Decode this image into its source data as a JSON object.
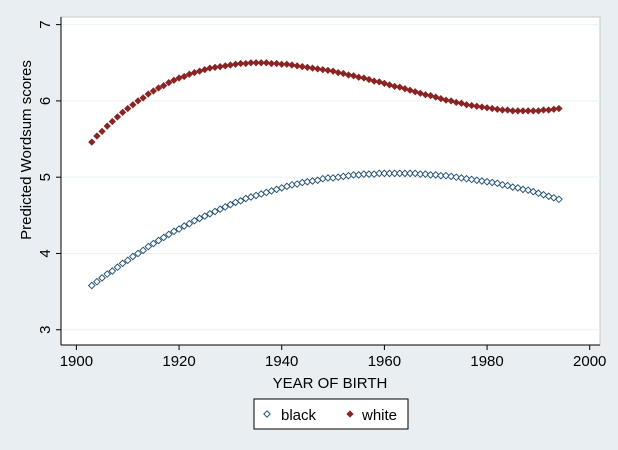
{
  "chart_data": {
    "type": "scatter",
    "title": "",
    "xlabel": "YEAR OF BIRTH",
    "ylabel": "Predicted Wordsum scores",
    "xlim": [
      1897,
      2002
    ],
    "ylim": [
      2.8,
      7.1
    ],
    "xticks": [
      1900,
      1920,
      1940,
      1960,
      1980,
      2000
    ],
    "xtick_labels": [
      "1900",
      "1920",
      "1940",
      "1960",
      "1980",
      "2000"
    ],
    "yticks": [
      3,
      4,
      5,
      6,
      7
    ],
    "ytick_labels": [
      "3",
      "4",
      "5",
      "6",
      "7"
    ],
    "grid": "horizontal",
    "legend_position": "bottom",
    "series": [
      {
        "name": "black",
        "color": "#1a4a6e",
        "marker": "hollow-diamond",
        "x": [
          1903,
          1904,
          1905,
          1906,
          1907,
          1908,
          1909,
          1910,
          1911,
          1912,
          1913,
          1914,
          1915,
          1916,
          1917,
          1918,
          1919,
          1920,
          1921,
          1922,
          1923,
          1924,
          1925,
          1926,
          1927,
          1928,
          1929,
          1930,
          1931,
          1932,
          1933,
          1934,
          1935,
          1936,
          1937,
          1938,
          1939,
          1940,
          1941,
          1942,
          1943,
          1944,
          1945,
          1946,
          1947,
          1948,
          1949,
          1950,
          1951,
          1952,
          1953,
          1954,
          1955,
          1956,
          1957,
          1958,
          1959,
          1960,
          1961,
          1962,
          1963,
          1964,
          1965,
          1966,
          1967,
          1968,
          1969,
          1970,
          1971,
          1972,
          1973,
          1974,
          1975,
          1976,
          1977,
          1978,
          1979,
          1980,
          1981,
          1982,
          1983,
          1984,
          1985,
          1986,
          1987,
          1988,
          1989,
          1990,
          1991,
          1992,
          1993,
          1994
        ],
        "y": [
          3.58,
          3.63,
          3.68,
          3.73,
          3.77,
          3.82,
          3.87,
          3.91,
          3.96,
          4.0,
          4.04,
          4.09,
          4.13,
          4.17,
          4.21,
          4.25,
          4.29,
          4.32,
          4.36,
          4.39,
          4.43,
          4.46,
          4.49,
          4.52,
          4.55,
          4.58,
          4.61,
          4.64,
          4.67,
          4.69,
          4.72,
          4.74,
          4.76,
          4.78,
          4.8,
          4.82,
          4.84,
          4.86,
          4.88,
          4.9,
          4.91,
          4.93,
          4.94,
          4.95,
          4.96,
          4.98,
          4.99,
          4.99,
          5.0,
          5.01,
          5.02,
          5.03,
          5.03,
          5.04,
          5.04,
          5.04,
          5.05,
          5.05,
          5.05,
          5.05,
          5.05,
          5.05,
          5.05,
          5.05,
          5.04,
          5.04,
          5.03,
          5.03,
          5.02,
          5.02,
          5.01,
          5.0,
          4.99,
          4.98,
          4.97,
          4.96,
          4.95,
          4.94,
          4.93,
          4.92,
          4.9,
          4.89,
          4.87,
          4.86,
          4.84,
          4.83,
          4.81,
          4.79,
          4.77,
          4.75,
          4.73,
          4.71
        ]
      },
      {
        "name": "white",
        "color": "#8b2323",
        "marker": "filled-diamond",
        "x": [
          1903,
          1904,
          1905,
          1906,
          1907,
          1908,
          1909,
          1910,
          1911,
          1912,
          1913,
          1914,
          1915,
          1916,
          1917,
          1918,
          1919,
          1920,
          1921,
          1922,
          1923,
          1924,
          1925,
          1926,
          1927,
          1928,
          1929,
          1930,
          1931,
          1932,
          1933,
          1934,
          1935,
          1936,
          1937,
          1938,
          1939,
          1940,
          1941,
          1942,
          1943,
          1944,
          1945,
          1946,
          1947,
          1948,
          1949,
          1950,
          1951,
          1952,
          1953,
          1954,
          1955,
          1956,
          1957,
          1958,
          1959,
          1960,
          1961,
          1962,
          1963,
          1964,
          1965,
          1966,
          1967,
          1968,
          1969,
          1970,
          1971,
          1972,
          1973,
          1974,
          1975,
          1976,
          1977,
          1978,
          1979,
          1980,
          1981,
          1982,
          1983,
          1984,
          1985,
          1986,
          1987,
          1988,
          1989,
          1990,
          1991,
          1992,
          1993,
          1994
        ],
        "y": [
          5.46,
          5.54,
          5.6,
          5.67,
          5.73,
          5.79,
          5.85,
          5.9,
          5.95,
          6.0,
          6.04,
          6.09,
          6.13,
          6.17,
          6.2,
          6.24,
          6.27,
          6.3,
          6.32,
          6.35,
          6.37,
          6.39,
          6.41,
          6.43,
          6.44,
          6.45,
          6.46,
          6.47,
          6.48,
          6.49,
          6.49,
          6.5,
          6.5,
          6.5,
          6.5,
          6.49,
          6.49,
          6.48,
          6.48,
          6.47,
          6.46,
          6.45,
          6.44,
          6.43,
          6.42,
          6.41,
          6.4,
          6.39,
          6.37,
          6.36,
          6.34,
          6.33,
          6.31,
          6.3,
          6.28,
          6.26,
          6.25,
          6.23,
          6.21,
          6.19,
          6.18,
          6.16,
          6.14,
          6.12,
          6.1,
          6.08,
          6.07,
          6.05,
          6.03,
          6.01,
          6.0,
          5.98,
          5.97,
          5.95,
          5.94,
          5.93,
          5.92,
          5.91,
          5.9,
          5.89,
          5.88,
          5.88,
          5.87,
          5.87,
          5.87,
          5.87,
          5.87,
          5.87,
          5.88,
          5.88,
          5.89,
          5.9
        ]
      }
    ]
  }
}
